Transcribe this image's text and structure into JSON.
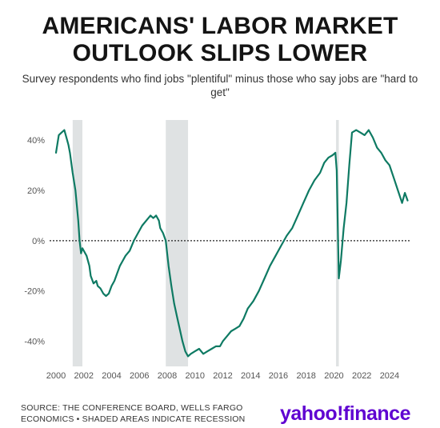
{
  "header": {
    "title_line1": "AMERICANS' LABOR MARKET",
    "title_line2": "OUTLOOK SLIPS LOWER",
    "subtitle": "Survey respondents who find jobs \"plentiful\" minus those who say jobs are \"hard to get\""
  },
  "footer": {
    "source_line1": "SOURCE: THE CONFERENCE BOARD, WELLS FARGO",
    "source_line2": "ECONOMICS • SHADED AREAS INDICATE RECESSION",
    "logo_text": "yahoo",
    "logo_bang": "!",
    "logo_suffix": "finance"
  },
  "colors": {
    "line": "#0e7a63",
    "recession": "#dfe2e3",
    "zero_line": "#222222",
    "axis_text": "#555555",
    "logo": "#5f01d1"
  },
  "chart_data": {
    "type": "line",
    "title": "AMERICANS' LABOR MARKET OUTLOOK SLIPS LOWER",
    "xlabel": "",
    "ylabel": "",
    "xlim": [
      2000,
      2025.5
    ],
    "ylim": [
      -50,
      48
    ],
    "x_ticks": [
      2000,
      2002,
      2004,
      2006,
      2008,
      2010,
      2012,
      2014,
      2016,
      2018,
      2020,
      2022,
      2024
    ],
    "y_ticks": [
      40,
      20,
      0,
      -20,
      -40
    ],
    "y_tick_labels": [
      "40%",
      "20%",
      "0%",
      "-20%",
      "-40%"
    ],
    "grid": false,
    "zero_line": "dotted",
    "recessions": [
      [
        2001.2,
        2001.9
      ],
      [
        2007.9,
        2009.5
      ],
      [
        2020.15,
        2020.35
      ]
    ],
    "series": [
      {
        "x": [
          2000.0,
          2000.2,
          2000.4,
          2000.6,
          2000.8,
          2000.9,
          2001.0,
          2001.2,
          2001.4,
          2001.6,
          2001.7,
          2001.8,
          2001.9,
          2002.0,
          2002.2,
          2002.4,
          2002.5,
          2002.7,
          2002.9,
          2003.0,
          2003.2,
          2003.4,
          2003.6,
          2003.8,
          2004.0,
          2004.2,
          2004.4,
          2004.6,
          2004.8,
          2005.0,
          2005.3,
          2005.6,
          2005.9,
          2006.2,
          2006.5,
          2006.8,
          2007.0,
          2007.2,
          2007.4,
          2007.5,
          2007.7,
          2007.9,
          2008.1,
          2008.3,
          2008.5,
          2008.7,
          2008.9,
          2009.1,
          2009.3,
          2009.5,
          2009.7,
          2010.0,
          2010.3,
          2010.6,
          2010.9,
          2011.2,
          2011.5,
          2011.8,
          2012.0,
          2012.3,
          2012.6,
          2012.9,
          2013.2,
          2013.5,
          2013.8,
          2014.2,
          2014.6,
          2015.0,
          2015.4,
          2015.8,
          2016.2,
          2016.6,
          2017.0,
          2017.4,
          2017.8,
          2018.2,
          2018.6,
          2019.0,
          2019.3,
          2019.6,
          2019.9,
          2020.1,
          2020.2,
          2020.35,
          2020.5,
          2020.7,
          2020.9,
          2021.1,
          2021.3,
          2021.6,
          2021.9,
          2022.2,
          2022.5,
          2022.8,
          2023.1,
          2023.4,
          2023.7,
          2024.0,
          2024.3,
          2024.6,
          2024.9,
          2025.1,
          2025.3
        ],
        "y": [
          35,
          42,
          43,
          44,
          40,
          38,
          35,
          27,
          20,
          8,
          0,
          -5,
          -3,
          -4,
          -6,
          -10,
          -14,
          -17,
          -16,
          -18,
          -19,
          -21,
          -22,
          -21,
          -18,
          -16,
          -13,
          -10,
          -8,
          -6,
          -4,
          0,
          3,
          6,
          8,
          10,
          9,
          10,
          8,
          5,
          3,
          0,
          -10,
          -18,
          -25,
          -30,
          -35,
          -40,
          -44,
          -46,
          -45,
          -44,
          -43,
          -45,
          -44,
          -43,
          -42,
          -42,
          -40,
          -38,
          -36,
          -35,
          -34,
          -31,
          -27,
          -24,
          -20,
          -15,
          -10,
          -6,
          -2,
          2,
          5,
          10,
          15,
          20,
          24,
          27,
          31,
          33,
          34,
          35,
          28,
          -15,
          -8,
          5,
          15,
          30,
          43,
          44,
          43,
          42,
          44,
          41,
          37,
          35,
          32,
          30,
          25,
          20,
          15,
          19,
          16
        ]
      }
    ]
  }
}
